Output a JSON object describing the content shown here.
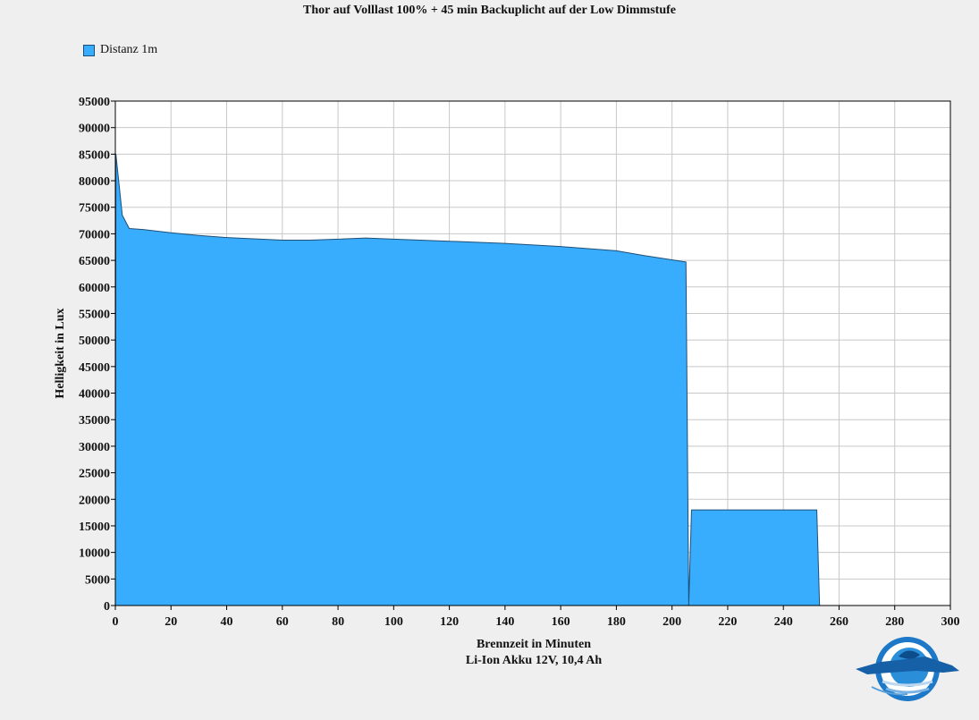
{
  "chart_data": {
    "type": "area",
    "title": "Thor auf Volllast 100% + 45 min Backuplicht auf der Low Dimmstufe",
    "xlabel": "Brennzeit in Minuten",
    "xlabel2": "Li-Ion Akku 12V, 10,4 Ah",
    "ylabel": "Helligkeit in Lux",
    "xlim": [
      0,
      300
    ],
    "ylim": [
      0,
      95000
    ],
    "xticks": [
      0,
      20,
      40,
      60,
      80,
      100,
      120,
      140,
      160,
      180,
      200,
      220,
      240,
      260,
      280,
      300
    ],
    "yticks": [
      0,
      5000,
      10000,
      15000,
      20000,
      25000,
      30000,
      35000,
      40000,
      45000,
      50000,
      55000,
      60000,
      65000,
      70000,
      75000,
      80000,
      85000,
      90000,
      95000
    ],
    "grid": true,
    "legend_position": "top-left",
    "series": [
      {
        "name": "Distanz 1m",
        "color": "#38acfd",
        "x": [
          0,
          0.2,
          2.5,
          5,
          10,
          20,
          30,
          40,
          60,
          70,
          80,
          90,
          100,
          120,
          140,
          160,
          180,
          190,
          205,
          206,
          207,
          252,
          253,
          300
        ],
        "y": [
          0,
          85000,
          73500,
          71000,
          70800,
          70200,
          69700,
          69300,
          68800,
          68800,
          69000,
          69200,
          69000,
          68600,
          68200,
          67600,
          66800,
          65900,
          64700,
          0,
          18000,
          18000,
          0,
          0
        ]
      }
    ]
  },
  "logo_icon": "diver-logo-icon"
}
